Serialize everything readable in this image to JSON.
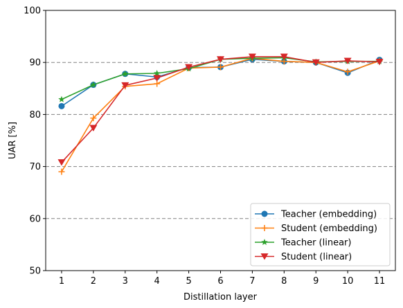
{
  "chart_data": {
    "type": "line",
    "xlabel": "Distillation layer",
    "ylabel": "UAR [%]",
    "x": [
      1,
      2,
      3,
      4,
      5,
      6,
      7,
      8,
      9,
      10,
      11
    ],
    "xticks": [
      "1",
      "2",
      "3",
      "4",
      "5",
      "6",
      "7",
      "8",
      "9",
      "10",
      "11"
    ],
    "yticks": [
      "50",
      "60",
      "70",
      "80",
      "90",
      "100"
    ],
    "ylim": [
      50,
      100
    ],
    "xlim": [
      0.5,
      11.5
    ],
    "grid": "horizontal dashed",
    "legend_position": "lower-right",
    "series": [
      {
        "name": "Teacher (embedding)",
        "color": "#1f77b4",
        "marker": "circle",
        "values": [
          81.6,
          85.7,
          87.8,
          87.2,
          89.0,
          89.1,
          90.6,
          90.2,
          90.0,
          88.0,
          90.5
        ]
      },
      {
        "name": "Student (embedding)",
        "color": "#ff7f0e",
        "marker": "plus",
        "values": [
          69.0,
          79.3,
          85.4,
          85.9,
          88.9,
          89.1,
          90.8,
          90.2,
          90.0,
          88.2,
          90.3
        ]
      },
      {
        "name": "Teacher (linear)",
        "color": "#2ca02c",
        "marker": "star",
        "values": [
          82.9,
          85.7,
          87.8,
          87.9,
          88.8,
          90.6,
          90.8,
          90.9,
          90.1,
          90.2,
          90.2
        ]
      },
      {
        "name": "Student (linear)",
        "color": "#d62728",
        "marker": "triangle-down",
        "values": [
          70.8,
          77.4,
          85.6,
          87.0,
          89.1,
          90.6,
          91.1,
          91.1,
          90.0,
          90.3,
          90.1
        ]
      }
    ]
  }
}
